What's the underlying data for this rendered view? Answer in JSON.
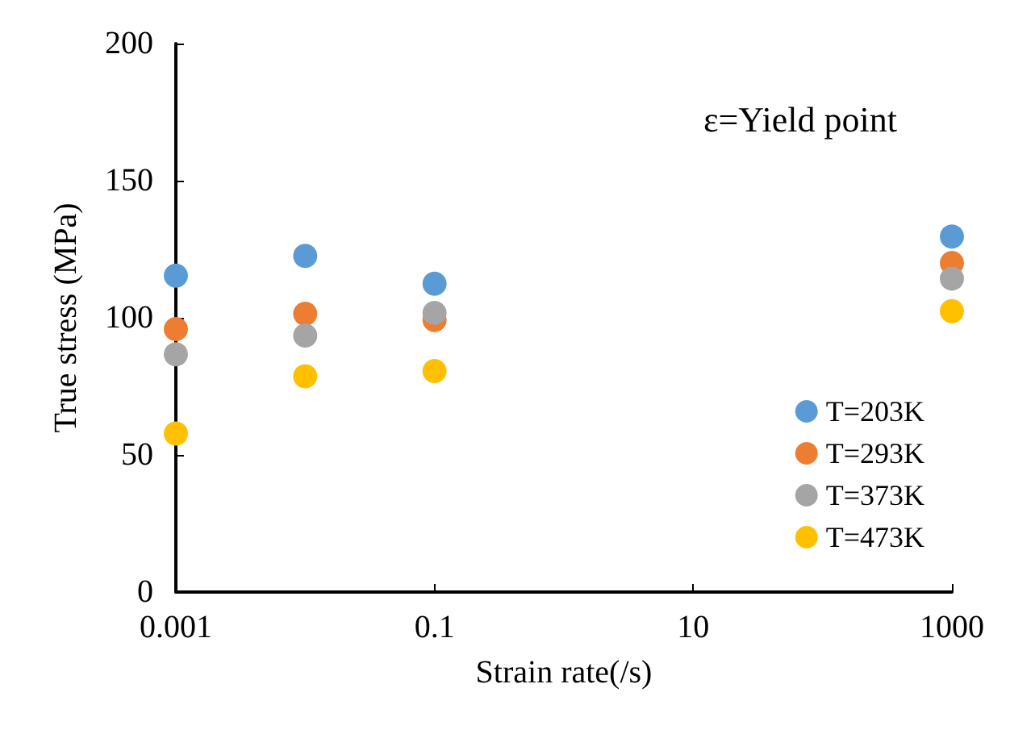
{
  "chart_data": {
    "type": "scatter",
    "xlabel": "Strain rate(/s)",
    "ylabel": "True stress (MPa)",
    "annotations": [
      "ε=Yield point"
    ],
    "x": [
      0.001,
      0.01,
      0.1,
      1000
    ],
    "log": "x",
    "xlim": [
      0.001,
      1000
    ],
    "xticks": [
      0.001,
      0.1,
      10,
      1000
    ],
    "ylim": [
      0,
      200
    ],
    "yticks": [
      0,
      50,
      100,
      150,
      200
    ],
    "grid": false,
    "legend": "bottom right",
    "marker": "circle",
    "series": [
      {
        "name": "T=203K",
        "color": "#5b9bd5",
        "values": [
          115.4,
          122.6,
          112.4,
          129.6
        ]
      },
      {
        "name": "T=293K",
        "color": "#ed7d31",
        "values": [
          95.9,
          101.5,
          99.2,
          120
        ]
      },
      {
        "name": "T=373K",
        "color": "#a5a5a5",
        "values": [
          86.7,
          93.5,
          101.8,
          114.3
        ]
      },
      {
        "name": "T=473K",
        "color": "#ffc000",
        "values": [
          57.8,
          78.7,
          80.6,
          102.4
        ]
      }
    ]
  }
}
